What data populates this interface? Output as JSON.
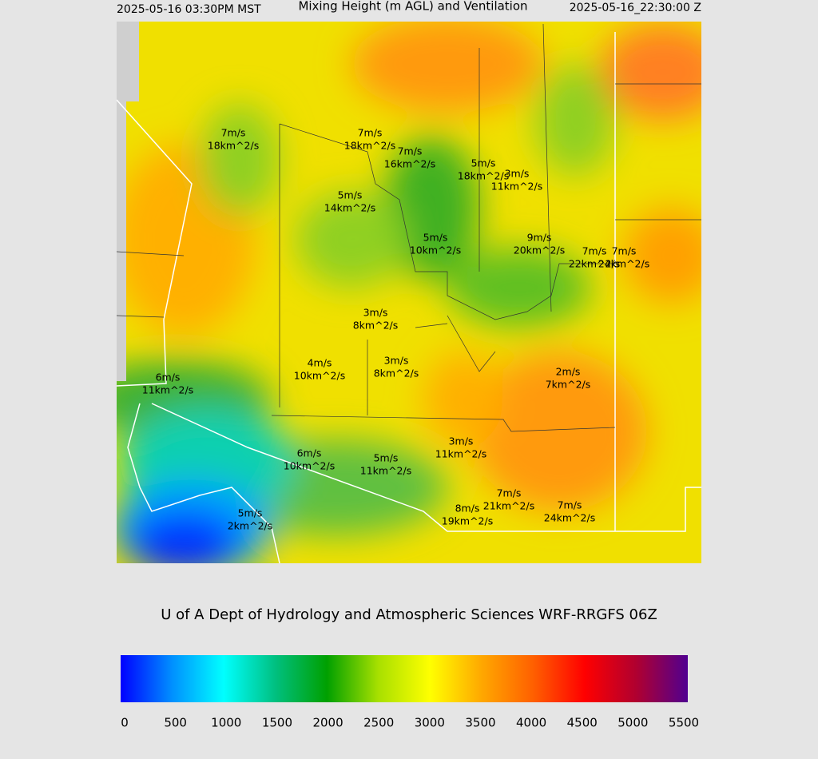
{
  "header": {
    "left": "2025-05-16 03:30PM MST",
    "title": "Mixing Height (m AGL) and Ventilation",
    "right": "2025-05-16_22:30:00 Z"
  },
  "labels": [
    {
      "wind": "7m/s",
      "vent": "18km^2/s"
    },
    {
      "wind": "7m/s",
      "vent": "18km^2/s"
    },
    {
      "wind": "7m/s",
      "vent": "16km^2/s"
    },
    {
      "wind": "5m/s",
      "vent": "18km^2/s"
    },
    {
      "wind": "3m/s",
      "vent": "11km^2/s"
    },
    {
      "wind": "5m/s",
      "vent": "14km^2/s"
    },
    {
      "wind": "5m/s",
      "vent": "10km^2/s"
    },
    {
      "wind": "9m/s",
      "vent": "20km^2/s"
    },
    {
      "wind": "7m/s",
      "vent": "22km^2/s"
    },
    {
      "wind": "7m/s",
      "vent": "24km^2/s"
    },
    {
      "wind": "3m/s",
      "vent": "8km^2/s"
    },
    {
      "wind": "4m/s",
      "vent": "10km^2/s"
    },
    {
      "wind": "3m/s",
      "vent": "8km^2/s"
    },
    {
      "wind": "6m/s",
      "vent": "11km^2/s"
    },
    {
      "wind": "2m/s",
      "vent": "7km^2/s"
    },
    {
      "wind": "3m/s",
      "vent": "11km^2/s"
    },
    {
      "wind": "6m/s",
      "vent": "10km^2/s"
    },
    {
      "wind": "5m/s",
      "vent": "11km^2/s"
    },
    {
      "wind": "7m/s",
      "vent": "21km^2/s"
    },
    {
      "wind": "8m/s",
      "vent": "19km^2/s"
    },
    {
      "wind": "7m/s",
      "vent": "24km^2/s"
    },
    {
      "wind": "5m/s",
      "vent": "2km^2/s"
    }
  ],
  "credit": "U of A Dept of Hydrology and Atmospheric Sciences WRF-RRGFS 06Z",
  "colorbar": {
    "range": [
      0,
      5500
    ],
    "ticks": [
      0,
      500,
      1000,
      1500,
      2000,
      2500,
      3000,
      3500,
      4000,
      4500,
      5000,
      5500
    ],
    "stops": [
      {
        "value": 0,
        "color": "#0000ff"
      },
      {
        "value": 500,
        "color": "#0090ff"
      },
      {
        "value": 1000,
        "color": "#00ffff"
      },
      {
        "value": 1500,
        "color": "#00c080"
      },
      {
        "value": 2000,
        "color": "#00a000"
      },
      {
        "value": 2500,
        "color": "#a8e000"
      },
      {
        "value": 3000,
        "color": "#ffff00"
      },
      {
        "value": 3500,
        "color": "#ffa800"
      },
      {
        "value": 4000,
        "color": "#ff6000"
      },
      {
        "value": 4500,
        "color": "#ff0000"
      },
      {
        "value": 5000,
        "color": "#b00030"
      },
      {
        "value": 5500,
        "color": "#500090"
      }
    ]
  }
}
